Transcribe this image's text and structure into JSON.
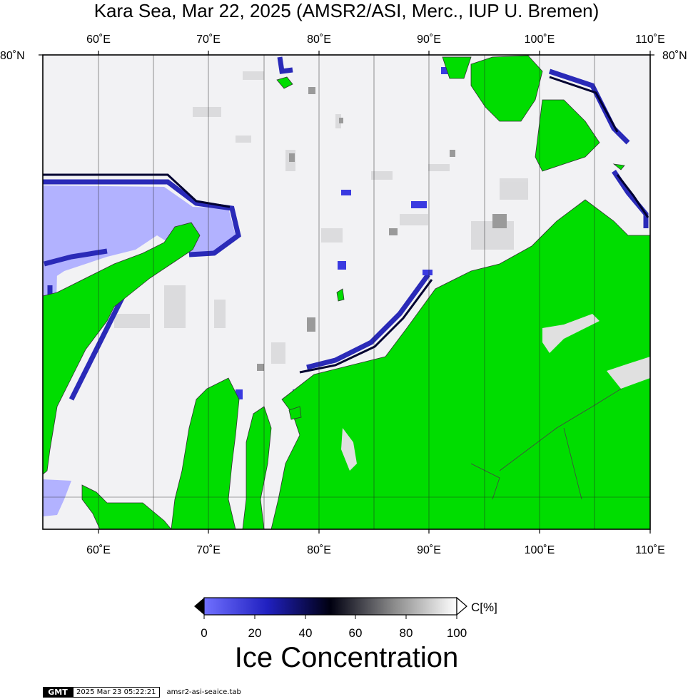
{
  "header": {
    "title": "Kara Sea, Mar 22, 2025 (AMSR2/ASI, Merc., IUP U. Bremen)"
  },
  "map": {
    "region": "Kara Sea",
    "lon_labels": [
      "60˚E",
      "70˚E",
      "80˚E",
      "90˚E",
      "100˚E",
      "110˚E"
    ],
    "lat_labels": [
      "80˚N"
    ],
    "colors": {
      "land": "#00dd00",
      "open_water": "#b2b2ff",
      "low_concentration": "#3a3adb",
      "mid_concentration": "#000040",
      "high_concentration": "#ffffff",
      "grid": "#000000"
    }
  },
  "colorbar": {
    "label": "Ice Concentration",
    "unit": "C[%]",
    "ticks": [
      "0",
      "20",
      "40",
      "60",
      "80",
      "100"
    ],
    "range": [
      0,
      100
    ]
  },
  "footer": {
    "logo": "GMT",
    "timestamp": "2025 Mar 23 05:22:21",
    "filename": "amsr2-asi-seaice.tab"
  }
}
